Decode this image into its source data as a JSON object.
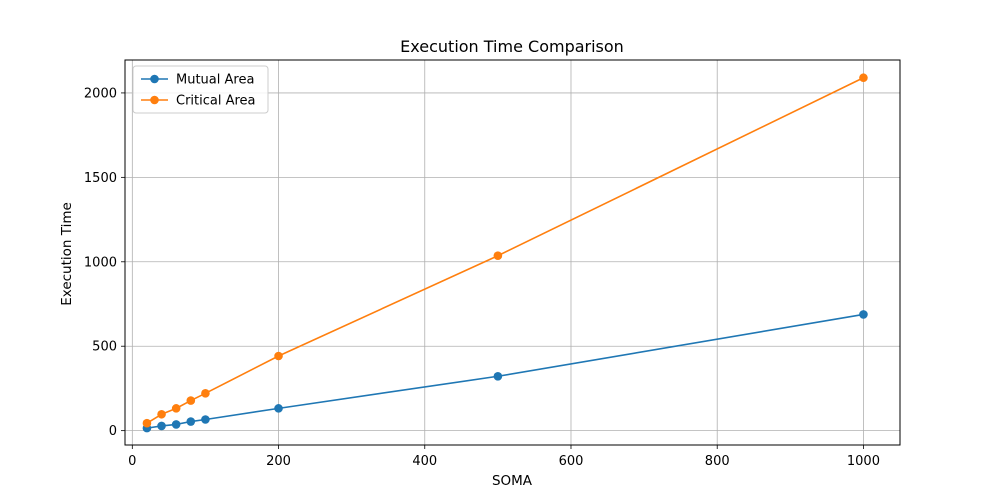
{
  "chart_data": {
    "type": "line",
    "title": "Execution Time Comparison",
    "xlabel": "SOMA",
    "ylabel": "Execution Time",
    "xlim": [
      -10,
      1050
    ],
    "ylim": [
      -85,
      2195
    ],
    "xticks": [
      0,
      200,
      400,
      600,
      800,
      1000
    ],
    "yticks": [
      0,
      500,
      1000,
      1500,
      2000
    ],
    "grid": true,
    "legend_position": "top-left",
    "x": [
      20,
      40,
      60,
      80,
      100,
      200,
      500,
      1000
    ],
    "series": [
      {
        "name": "Mutual Area",
        "color": "#1f77b4",
        "marker": "circle",
        "values": [
          15,
          28,
          37,
          54,
          66,
          132,
          322,
          688
        ]
      },
      {
        "name": "Critical Area",
        "color": "#ff7f0e",
        "marker": "circle",
        "values": [
          44,
          97,
          132,
          178,
          221,
          442,
          1036,
          2090
        ]
      }
    ]
  }
}
